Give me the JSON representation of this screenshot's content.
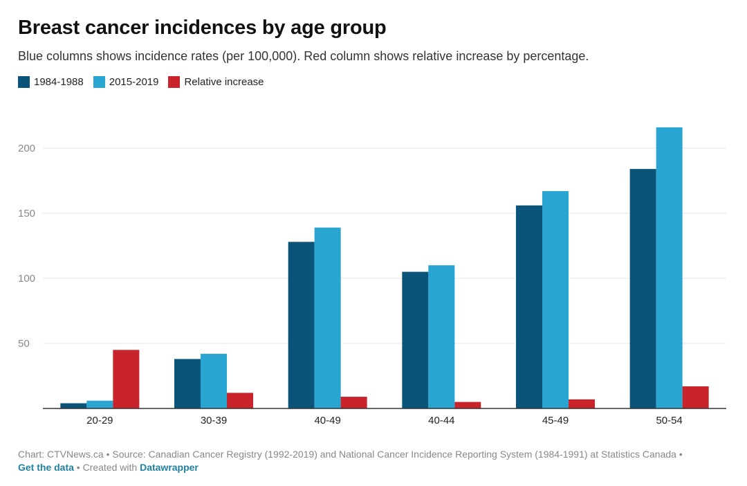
{
  "header": {
    "title": "Breast cancer incidences by age group",
    "subtitle": "Blue columns shows incidence rates (per 100,000). Red column shows relative increase by percentage."
  },
  "colors": {
    "series_1": "#0b5479",
    "series_2": "#29a5d1",
    "series_3": "#c9232b"
  },
  "footer": {
    "credit": "Chart: CTVNews.ca • Source: Canadian Cancer Registry (1992-2019) and National Cancer Incidence Reporting System (1984-1991) at Statistics Canada •",
    "get_data": "Get the data",
    "created_with": " • Created with ",
    "datawrapper": "Datawrapper"
  },
  "chart_data": {
    "type": "bar",
    "categories": [
      "20-29",
      "30-39",
      "40-49",
      "40-44",
      "45-49",
      "50-54"
    ],
    "series": [
      {
        "name": "1984-1988",
        "values": [
          4,
          38,
          128,
          105,
          156,
          184
        ]
      },
      {
        "name": "2015-2019",
        "values": [
          6,
          42,
          139,
          110,
          167,
          216
        ]
      },
      {
        "name": "Relative increase",
        "values": [
          45,
          12,
          9,
          5,
          7,
          17
        ]
      }
    ],
    "yticks": [
      50,
      100,
      150,
      200
    ],
    "ylim": [
      0,
      225
    ],
    "grid": true,
    "legend": "top-left"
  }
}
